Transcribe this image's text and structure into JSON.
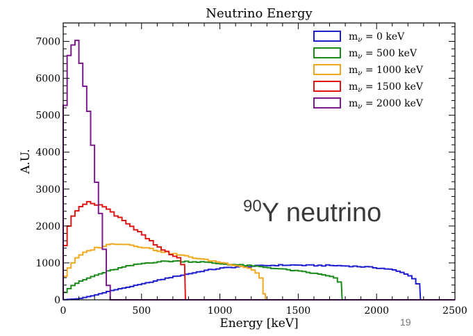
{
  "chart_data": {
    "type": "histogram",
    "title": "Neutrino Energy",
    "xlabel": "Energy [keV]",
    "ylabel": "A.U.",
    "xlim": [
      0,
      2500
    ],
    "ylim": [
      0,
      7500
    ],
    "bin_width": 25,
    "x_ticks": [
      0,
      500,
      1000,
      1500,
      2000,
      2500
    ],
    "y_ticks": [
      0,
      1000,
      2000,
      3000,
      4000,
      5000,
      6000,
      7000
    ],
    "grid": false,
    "legend_position": "top-right",
    "annotation": {
      "superscript": "90",
      "text": "Y neutrino"
    },
    "page_number": "19",
    "series": [
      {
        "name": "m_ν = 0 keV",
        "legend_prefix": "m",
        "legend_sub": "ν",
        "legend_suffix": " = 0 keV",
        "color": "#1f1fd0",
        "endpoint": 2280,
        "points": [
          [
            0,
            0
          ],
          [
            100,
            30
          ],
          [
            200,
            120
          ],
          [
            300,
            240
          ],
          [
            400,
            330
          ],
          [
            500,
            420
          ],
          [
            600,
            520
          ],
          [
            700,
            620
          ],
          [
            800,
            700
          ],
          [
            900,
            790
          ],
          [
            1000,
            850
          ],
          [
            1100,
            890
          ],
          [
            1200,
            910
          ],
          [
            1300,
            930
          ],
          [
            1400,
            940
          ],
          [
            1500,
            940
          ],
          [
            1600,
            930
          ],
          [
            1700,
            930
          ],
          [
            1800,
            920
          ],
          [
            1900,
            900
          ],
          [
            2000,
            870
          ],
          [
            2100,
            820
          ],
          [
            2200,
            690
          ],
          [
            2260,
            500
          ],
          [
            2280,
            0
          ]
        ]
      },
      {
        "name": "m_ν = 500 keV",
        "legend_prefix": "m",
        "legend_sub": "ν",
        "legend_suffix": " = 500 keV",
        "color": "#1a8a1a",
        "endpoint": 1780,
        "points": [
          [
            0,
            150
          ],
          [
            50,
            360
          ],
          [
            100,
            480
          ],
          [
            200,
            650
          ],
          [
            300,
            790
          ],
          [
            400,
            900
          ],
          [
            500,
            980
          ],
          [
            600,
            1030
          ],
          [
            700,
            1050
          ],
          [
            800,
            1040
          ],
          [
            900,
            1020
          ],
          [
            1000,
            980
          ],
          [
            1100,
            950
          ],
          [
            1200,
            920
          ],
          [
            1300,
            880
          ],
          [
            1400,
            830
          ],
          [
            1500,
            780
          ],
          [
            1600,
            720
          ],
          [
            1700,
            650
          ],
          [
            1760,
            550
          ],
          [
            1780,
            0
          ]
        ]
      },
      {
        "name": "m_ν = 1000 keV",
        "legend_prefix": "m",
        "legend_sub": "ν",
        "legend_suffix": " = 1000 keV",
        "color": "#f2a81d",
        "endpoint": 1290,
        "points": [
          [
            0,
            500
          ],
          [
            25,
            780
          ],
          [
            50,
            950
          ],
          [
            100,
            1180
          ],
          [
            150,
            1300
          ],
          [
            200,
            1390
          ],
          [
            300,
            1500
          ],
          [
            350,
            1530
          ],
          [
            400,
            1510
          ],
          [
            500,
            1440
          ],
          [
            600,
            1340
          ],
          [
            700,
            1250
          ],
          [
            800,
            1170
          ],
          [
            900,
            1090
          ],
          [
            1000,
            1020
          ],
          [
            1100,
            940
          ],
          [
            1200,
            850
          ],
          [
            1260,
            650
          ],
          [
            1290,
            0
          ]
        ]
      },
      {
        "name": "m_ν = 1500 keV",
        "legend_prefix": "m",
        "legend_sub": "ν",
        "legend_suffix": " = 1500 keV",
        "color": "#e01515",
        "endpoint": 780,
        "points": [
          [
            0,
            1170
          ],
          [
            25,
            1800
          ],
          [
            50,
            2150
          ],
          [
            75,
            2380
          ],
          [
            100,
            2520
          ],
          [
            125,
            2600
          ],
          [
            150,
            2620
          ],
          [
            175,
            2610
          ],
          [
            200,
            2620
          ],
          [
            225,
            2600
          ],
          [
            250,
            2550
          ],
          [
            300,
            2400
          ],
          [
            350,
            2280
          ],
          [
            400,
            2120
          ],
          [
            450,
            1950
          ],
          [
            500,
            1780
          ],
          [
            550,
            1620
          ],
          [
            600,
            1450
          ],
          [
            650,
            1320
          ],
          [
            700,
            1200
          ],
          [
            760,
            1100
          ],
          [
            780,
            0
          ]
        ]
      },
      {
        "name": "m_ν = 2000 keV",
        "legend_prefix": "m",
        "legend_sub": "ν",
        "legend_suffix": " = 2000 keV",
        "color": "#7a1a8c",
        "endpoint": 300,
        "points": [
          [
            0,
            4200
          ],
          [
            25,
            6500
          ],
          [
            50,
            6900
          ],
          [
            75,
            7100
          ],
          [
            100,
            6800
          ],
          [
            125,
            6150
          ],
          [
            150,
            5550
          ],
          [
            175,
            4600
          ],
          [
            200,
            3650
          ],
          [
            225,
            2680
          ],
          [
            250,
            1920
          ],
          [
            275,
            780
          ],
          [
            300,
            0
          ]
        ]
      }
    ]
  }
}
